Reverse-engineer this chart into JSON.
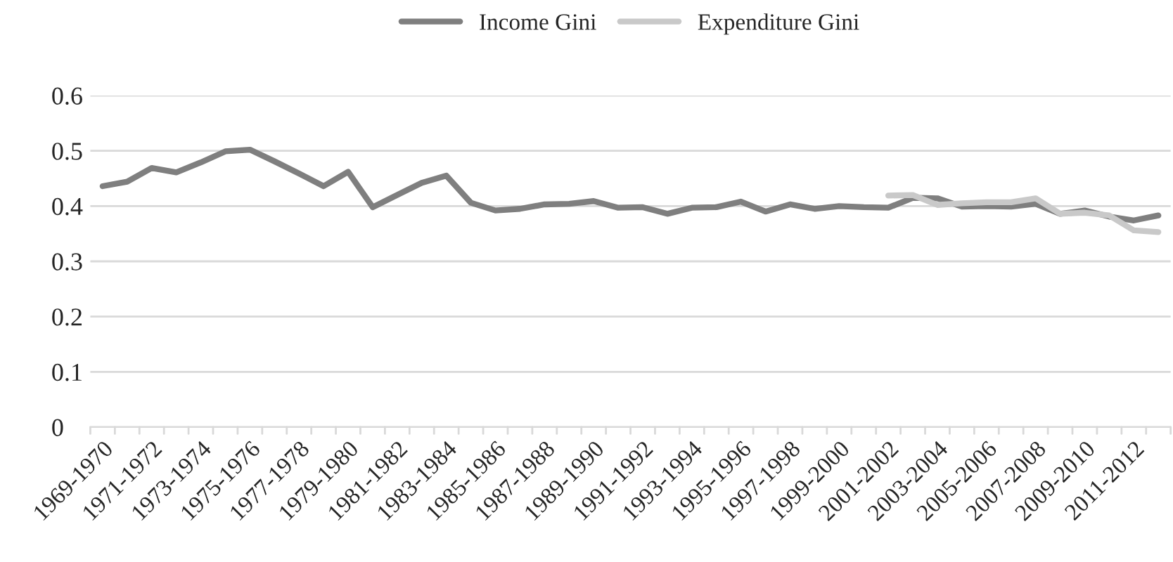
{
  "chart_data": {
    "type": "line",
    "categories": [
      "1969-1970",
      null,
      "1971-1972",
      null,
      "1973-1974",
      null,
      "1975-1976",
      null,
      "1977-1978",
      null,
      "1979-1980",
      null,
      "1981-1982",
      null,
      "1983-1984",
      null,
      "1985-1986",
      null,
      "1987-1988",
      null,
      "1989-1990",
      null,
      "1991-1992",
      null,
      "1993-1994",
      null,
      "1995-1996",
      null,
      "1997-1998",
      null,
      "1999-2000",
      null,
      "2001-2002",
      null,
      "2003-2004",
      null,
      "2005-2006",
      null,
      "2007-2008",
      null,
      "2009-2010",
      null,
      "2011-2012",
      null
    ],
    "series": [
      {
        "name": "Income Gini",
        "color": "#7f7f7f",
        "values": [
          0.436,
          0.444,
          0.469,
          0.461,
          0.479,
          0.499,
          0.502,
          0.481,
          0.459,
          0.436,
          0.462,
          0.398,
          0.42,
          0.442,
          0.455,
          0.406,
          0.392,
          0.395,
          0.403,
          0.404,
          0.409,
          0.397,
          0.398,
          0.386,
          0.397,
          0.398,
          0.408,
          0.39,
          0.403,
          0.395,
          0.4,
          0.398,
          0.397,
          0.415,
          0.414,
          0.399,
          0.4,
          0.399,
          0.404,
          0.386,
          0.392,
          0.381,
          0.374,
          0.383
        ]
      },
      {
        "name": "Expenditure Gini",
        "color": "#c9c9c9",
        "values": [
          null,
          null,
          null,
          null,
          null,
          null,
          null,
          null,
          null,
          null,
          null,
          null,
          null,
          null,
          null,
          null,
          null,
          null,
          null,
          null,
          null,
          null,
          null,
          null,
          null,
          null,
          null,
          null,
          null,
          null,
          null,
          null,
          0.419,
          0.42,
          0.402,
          0.405,
          0.407,
          0.407,
          0.414,
          0.386,
          0.388,
          0.383,
          0.356,
          0.353
        ]
      }
    ],
    "ylim": [
      0,
      0.6
    ],
    "yticks": [
      0,
      {
        "value": 0.1,
        "label": "0.1"
      },
      {
        "value": 0.2,
        "label": "0.2"
      },
      {
        "value": 0.3,
        "label": "0.3"
      },
      {
        "value": 0.4,
        "label": "0.4"
      },
      {
        "value": 0.5,
        "label": "0.5"
      },
      {
        "value": 0.6,
        "label": "0.6"
      }
    ],
    "grid": "y",
    "legend": "top",
    "marker": "none",
    "line_style": "solid"
  }
}
